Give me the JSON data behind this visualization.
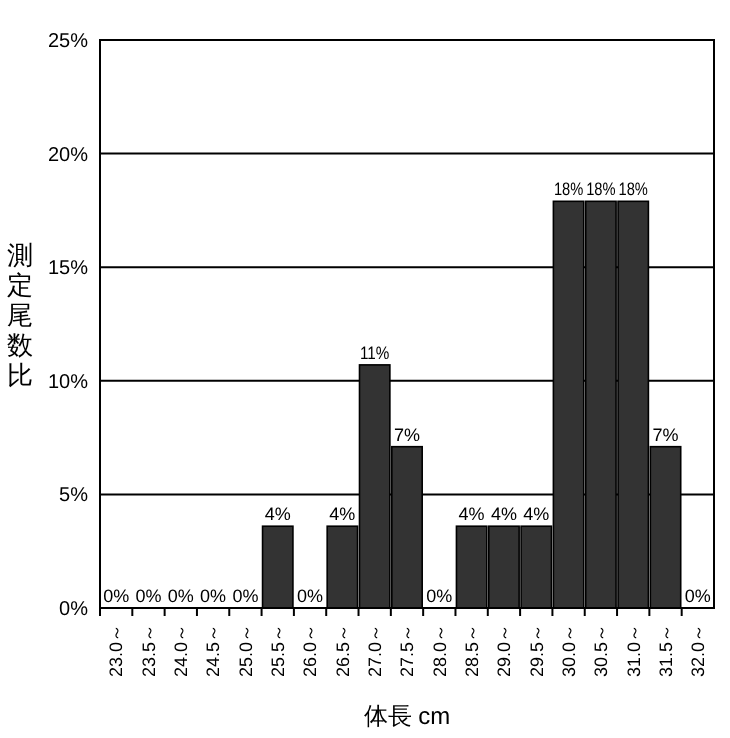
{
  "chart_data": {
    "type": "bar",
    "xlabel": "体長 cm",
    "ylabel": "測定尾数比",
    "categories": [
      "23.0～",
      "23.5～",
      "24.0～",
      "24.5～",
      "25.0～",
      "25.5～",
      "26.0～",
      "26.5～",
      "27.0～",
      "27.5～",
      "28.0～",
      "28.5～",
      "29.0～",
      "29.5～",
      "30.0～",
      "30.5～",
      "31.0～",
      "31.5～",
      "32.0～"
    ],
    "values": [
      0,
      0,
      0,
      0,
      0,
      3.6,
      0,
      3.6,
      10.7,
      7.1,
      0,
      3.6,
      3.6,
      3.6,
      17.9,
      17.9,
      17.9,
      7.1,
      0
    ],
    "value_labels": [
      "0%",
      "0%",
      "0%",
      "0%",
      "0%",
      "4%",
      "0%",
      "4%",
      "11%",
      "7%",
      "0%",
      "4%",
      "4%",
      "4%",
      "18%",
      "18%",
      "18%",
      "7%",
      "0%"
    ],
    "color": "#333333",
    "ylim": [
      0,
      25
    ],
    "yticks": [
      {
        "value": 0,
        "label": "0%"
      },
      {
        "value": 5,
        "label": "5%"
      },
      {
        "value": 10,
        "label": "10%"
      },
      {
        "value": 15,
        "label": "15%"
      },
      {
        "value": 20,
        "label": "20%"
      },
      {
        "value": 25,
        "label": "25%"
      }
    ],
    "grid": "y"
  }
}
